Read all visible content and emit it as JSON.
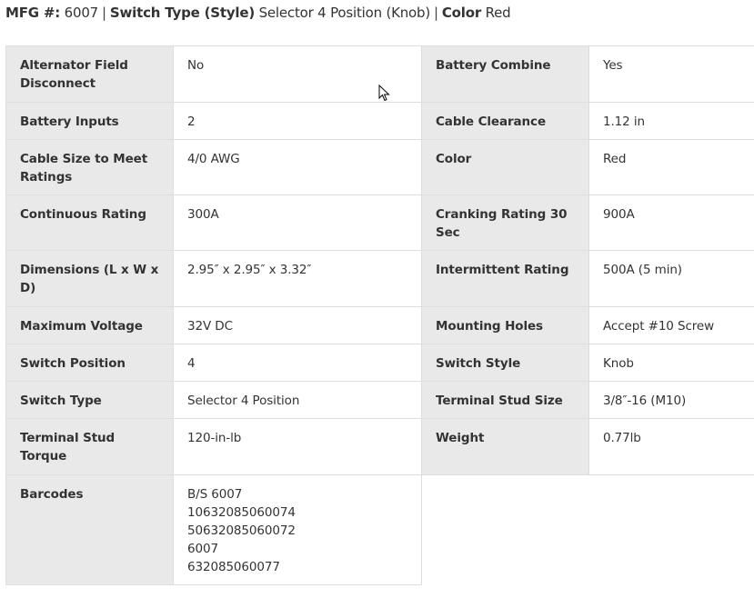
{
  "header": {
    "mfg_label": "MFG #:",
    "mfg_value": "6007",
    "switch_type_label": "Switch Type (Style)",
    "switch_type_value": "Selector 4 Position (Knob)",
    "color_label": "Color",
    "color_value": "Red",
    "separator": "|"
  },
  "specs": [
    [
      {
        "label": "Alternator Field Disconnect",
        "value": "No"
      },
      {
        "label": "Battery Combine",
        "value": "Yes"
      }
    ],
    [
      {
        "label": "Battery Inputs",
        "value": "2"
      },
      {
        "label": "Cable Clearance",
        "value": "1.12 in"
      }
    ],
    [
      {
        "label": "Cable Size to Meet Ratings",
        "value": "4/0 AWG"
      },
      {
        "label": "Color",
        "value": "Red"
      }
    ],
    [
      {
        "label": "Continuous Rating",
        "value": "300A"
      },
      {
        "label": "Cranking Rating 30 Sec",
        "value": "900A"
      }
    ],
    [
      {
        "label": "Dimensions (L x W x D)",
        "value": "2.95″ x 2.95″ x 3.32″"
      },
      {
        "label": "Intermittent Rating",
        "value": "500A (5 min)"
      }
    ],
    [
      {
        "label": "Maximum Voltage",
        "value": "32V DC"
      },
      {
        "label": "Mounting Holes",
        "value": "Accept #10 Screw"
      }
    ],
    [
      {
        "label": "Switch Position",
        "value": "4"
      },
      {
        "label": "Switch Style",
        "value": "Knob"
      }
    ],
    [
      {
        "label": "Switch Type",
        "value": "Selector 4 Position"
      },
      {
        "label": "Terminal Stud Size",
        "value": "3/8″-16 (M10)"
      }
    ],
    [
      {
        "label": "Terminal Stud Torque",
        "value": "120-in-lb"
      },
      {
        "label": "Weight",
        "value": "0.77lb"
      }
    ],
    [
      {
        "label": "Barcodes",
        "values": [
          "B/S 6007",
          "10632085060074",
          "50632085060072",
          "6007",
          "632085060077"
        ]
      }
    ]
  ]
}
